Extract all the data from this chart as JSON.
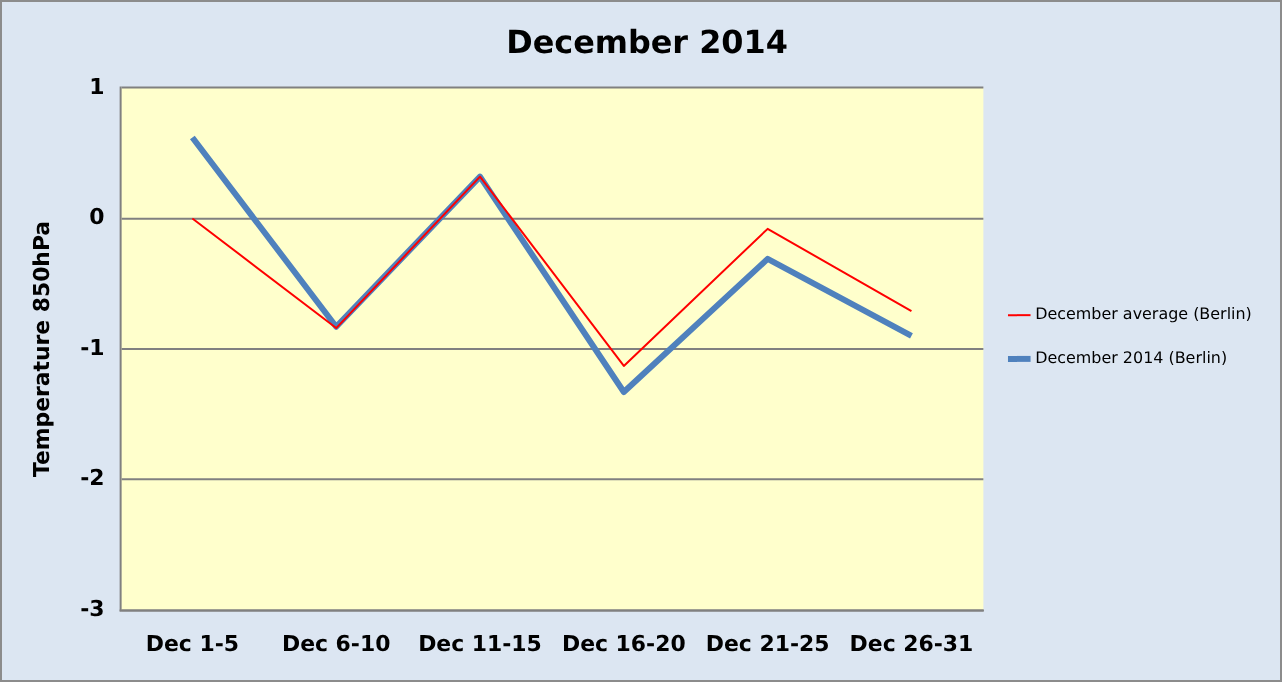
{
  "chart_data": {
    "type": "line",
    "title": "December 2014",
    "ylabel": "Temperature 850hPa",
    "categories": [
      "Dec 1-5",
      "Dec 6-10",
      "Dec 11-15",
      "Dec 16-20",
      "Dec 21-25",
      "Dec 26-31"
    ],
    "series": [
      {
        "name": "December 2014 (Berlin)",
        "color": "#4f81bd",
        "values": [
          0.62,
          -0.83,
          0.32,
          -1.33,
          -0.31,
          -0.9
        ]
      },
      {
        "name": "December average (Berlin)",
        "color": "#ff0000",
        "values": [
          0,
          -0.84,
          0.32,
          -1.13,
          -0.08,
          -0.71
        ]
      }
    ],
    "ylim": [
      -3,
      1
    ],
    "yticks": [
      -3,
      -2,
      -1,
      0,
      1
    ],
    "grid": "y",
    "legend": "right",
    "marker": "none",
    "line_style": "solid"
  }
}
